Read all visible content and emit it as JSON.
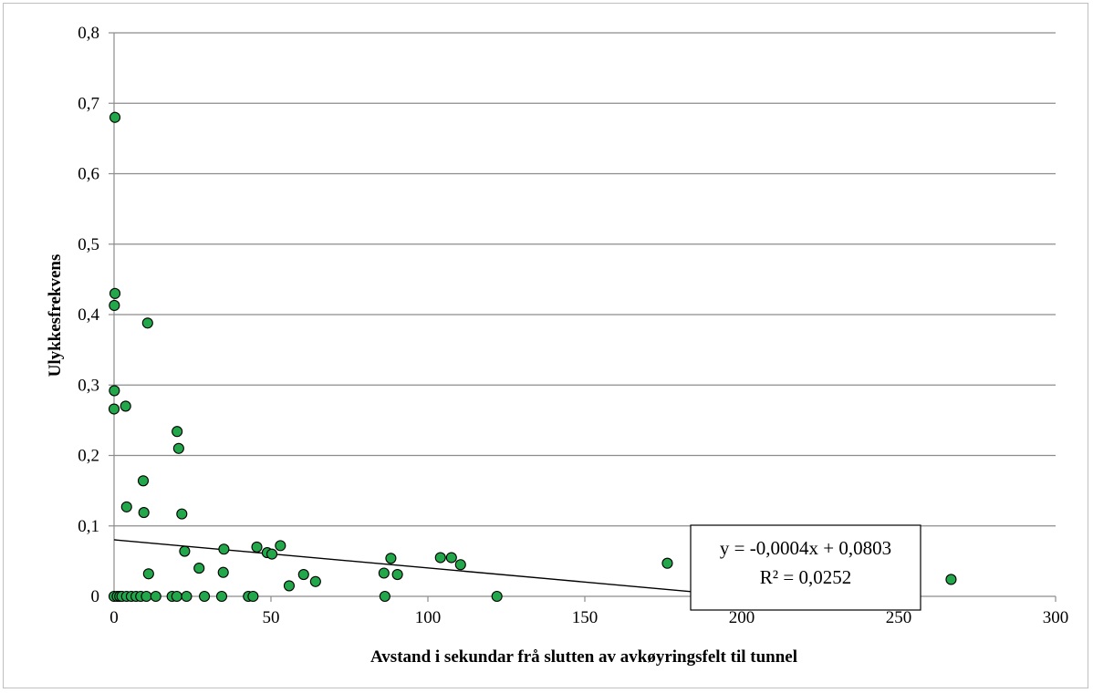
{
  "chart_data": {
    "type": "scatter",
    "title": "",
    "xlabel": "Avstand i sekundar frå slutten av avkøyringsfelt til tunnel",
    "ylabel": "Ulykkesfrekvens",
    "xlim": [
      0,
      300
    ],
    "ylim": [
      0,
      0.8
    ],
    "x_ticks": [
      0,
      50,
      100,
      150,
      200,
      250,
      300
    ],
    "x_tick_labels": [
      "0",
      "50",
      "100",
      "150",
      "200",
      "250",
      "300"
    ],
    "y_ticks": [
      0,
      0.1,
      0.2,
      0.3,
      0.4,
      0.5,
      0.6,
      0.7,
      0.8
    ],
    "y_tick_labels": [
      "0",
      "0,1",
      "0,2",
      "0,3",
      "0,4",
      "0,5",
      "0,6",
      "0,7",
      "0,8"
    ],
    "grid": "horizontal",
    "legend": "none",
    "marker_color": "#22a84a",
    "marker_edge_color": "#000000",
    "trendline": {
      "slope": -0.0004,
      "intercept": 0.0803,
      "equation_label": "y = -0,0004x + 0,0803",
      "r2_label": "R² = 0,0252",
      "label_position": "bottom-right"
    },
    "series": [
      {
        "points": [
          [
            0.3,
            0.68
          ],
          [
            0.3,
            0.43
          ],
          [
            0.1,
            0.413
          ],
          [
            0.1,
            0.292
          ],
          [
            0.0,
            0.266
          ],
          [
            3.7,
            0.27
          ],
          [
            10.7,
            0.388
          ],
          [
            20.1,
            0.234
          ],
          [
            20.6,
            0.21
          ],
          [
            9.3,
            0.164
          ],
          [
            4.0,
            0.127
          ],
          [
            9.5,
            0.119
          ],
          [
            21.6,
            0.117
          ],
          [
            22.5,
            0.064
          ],
          [
            11.0,
            0.032
          ],
          [
            27.1,
            0.04
          ],
          [
            35.0,
            0.067
          ],
          [
            34.8,
            0.034
          ],
          [
            45.5,
            0.07
          ],
          [
            48.8,
            0.062
          ],
          [
            50.3,
            0.06
          ],
          [
            53.0,
            0.072
          ],
          [
            55.8,
            0.015
          ],
          [
            60.4,
            0.031
          ],
          [
            64.2,
            0.021
          ],
          [
            86.0,
            0.033
          ],
          [
            88.2,
            0.054
          ],
          [
            90.3,
            0.031
          ],
          [
            104.0,
            0.055
          ],
          [
            107.5,
            0.055
          ],
          [
            110.4,
            0.045
          ],
          [
            176.3,
            0.047
          ],
          [
            266.7,
            0.024
          ],
          [
            0.0,
            0.0
          ],
          [
            1.0,
            0.0
          ],
          [
            1.8,
            0.0
          ],
          [
            2.5,
            0.0
          ],
          [
            4.0,
            0.0
          ],
          [
            5.5,
            0.0
          ],
          [
            7.0,
            0.0
          ],
          [
            8.5,
            0.0
          ],
          [
            10.3,
            0.0
          ],
          [
            13.3,
            0.0
          ],
          [
            18.5,
            0.0
          ],
          [
            20.0,
            0.0
          ],
          [
            23.1,
            0.0
          ],
          [
            28.8,
            0.0
          ],
          [
            34.3,
            0.0
          ],
          [
            42.8,
            0.0
          ],
          [
            44.3,
            0.0
          ],
          [
            86.3,
            0.0
          ],
          [
            122.0,
            0.0
          ]
        ]
      }
    ]
  }
}
